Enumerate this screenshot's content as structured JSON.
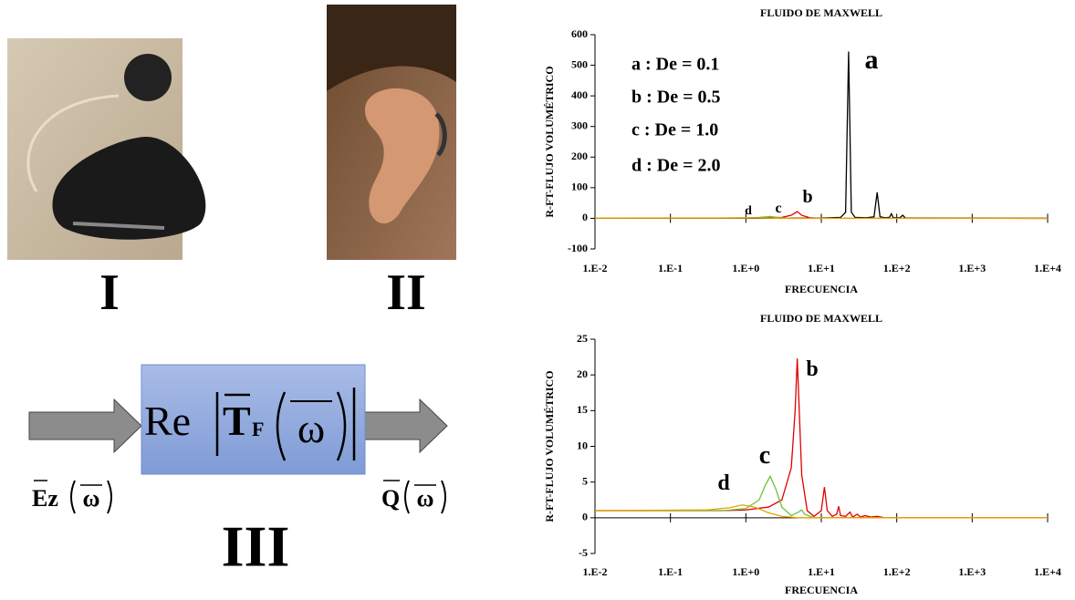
{
  "panels": {
    "labels": [
      "I",
      "II",
      "III"
    ]
  },
  "diagram": {
    "re": "Re",
    "t": "T",
    "f": "F",
    "omega": "ω",
    "input": "Ez",
    "output": "Q"
  },
  "chart_data": [
    {
      "type": "line",
      "title": "FLUIDO DE MAXWELL",
      "x_label": "FRECUENCIA",
      "y_label": "R-FT-FLUJO VOLUMÉTRICO",
      "log_x": true,
      "xlim": [
        0.01,
        10000
      ],
      "xticks": [
        {
          "value": 0.01,
          "label": "1.E-2"
        },
        {
          "value": 0.1,
          "label": "1.E-1"
        },
        {
          "value": 1,
          "label": "1.E+0"
        },
        {
          "value": 10,
          "label": "1.E+1"
        },
        {
          "value": 100,
          "label": "1.E+2"
        },
        {
          "value": 1000,
          "label": "1.E+3"
        },
        {
          "value": 10000,
          "label": "1.E+4"
        }
      ],
      "ylim": [
        -100,
        600
      ],
      "yticks": [
        -100,
        0,
        100,
        200,
        300,
        400,
        500,
        600
      ],
      "annotations": [
        "a : De = 0.1",
        "b : De = 0.5",
        "c : De = 1.0",
        "d : De = 2.0"
      ],
      "series": [
        {
          "name": "a",
          "color": "#000000",
          "x": [
            0.01,
            1,
            10,
            18,
            21,
            23,
            25,
            28,
            40,
            50,
            55,
            60,
            70,
            80,
            85,
            90,
            110,
            120,
            130,
            10000
          ],
          "values": [
            1,
            1,
            1,
            3,
            20,
            545,
            20,
            3,
            2,
            5,
            85,
            5,
            2,
            3,
            15,
            2,
            2,
            10,
            1,
            0
          ]
        },
        {
          "name": "b",
          "color": "#e00000",
          "x": [
            0.01,
            1,
            3,
            4,
            4.8,
            5.5,
            7,
            10
          ],
          "values": [
            1,
            1,
            3,
            10,
            22,
            10,
            2,
            0
          ]
        },
        {
          "name": "c",
          "color": "#70c040",
          "x": [
            0.01,
            1,
            1.5,
            2.1,
            2.8,
            4
          ],
          "values": [
            1,
            1,
            3,
            6,
            2,
            0
          ]
        },
        {
          "name": "d",
          "color": "#e8a000",
          "x": [
            0.01,
            0.5,
            0.9,
            1.5,
            3,
            10000
          ],
          "values": [
            1,
            1.3,
            1.8,
            1.2,
            0,
            0
          ]
        }
      ]
    },
    {
      "type": "line",
      "title": "FLUIDO DE MAXWELL",
      "x_label": "FRECUENCIA",
      "y_label": "R-FT-FLUJO VOLUMÉTRICO",
      "log_x": true,
      "xlim": [
        0.01,
        10000
      ],
      "xticks": [
        {
          "value": 0.01,
          "label": "1.E-2"
        },
        {
          "value": 0.1,
          "label": "1.E-1"
        },
        {
          "value": 1,
          "label": "1.E+0"
        },
        {
          "value": 10,
          "label": "1.E+1"
        },
        {
          "value": 100,
          "label": "1.E+2"
        },
        {
          "value": 1000,
          "label": "1.E+3"
        },
        {
          "value": 10000,
          "label": "1.E+4"
        }
      ],
      "ylim": [
        -5,
        25
      ],
      "yticks": [
        -5,
        0,
        5,
        10,
        15,
        20,
        25
      ],
      "series": [
        {
          "name": "b",
          "color": "#e00000",
          "x": [
            0.01,
            0.5,
            1,
            2,
            3,
            4,
            4.5,
            4.8,
            5.1,
            5.5,
            6.5,
            8,
            10,
            11,
            12,
            14,
            16,
            17,
            18,
            21,
            24,
            26,
            30,
            33,
            38,
            45,
            55,
            70,
            10000
          ],
          "values": [
            1,
            1,
            1.1,
            1.5,
            2.5,
            7,
            15,
            22.3,
            15,
            6,
            1,
            0.2,
            1,
            4.3,
            1,
            0.2,
            0.5,
            1.6,
            0.3,
            0.2,
            0.8,
            0.1,
            0.5,
            0.1,
            0.3,
            0.1,
            0.2,
            0,
            0
          ]
        },
        {
          "name": "c",
          "color": "#70c040",
          "x": [
            0.01,
            0.5,
            1,
            1.5,
            1.8,
            2.1,
            2.5,
            3,
            4,
            5,
            5.5,
            6,
            8,
            10000
          ],
          "values": [
            1,
            1,
            1.3,
            2.5,
            4.5,
            5.8,
            4,
            1.5,
            0.3,
            0.8,
            1.1,
            0.5,
            0,
            0
          ]
        },
        {
          "name": "d",
          "color": "#e8a000",
          "x": [
            0.01,
            0.3,
            0.6,
            0.9,
            1.3,
            2,
            3,
            5,
            10000
          ],
          "values": [
            1,
            1.1,
            1.4,
            1.8,
            1.5,
            0.7,
            0.2,
            0,
            0
          ]
        }
      ]
    }
  ]
}
